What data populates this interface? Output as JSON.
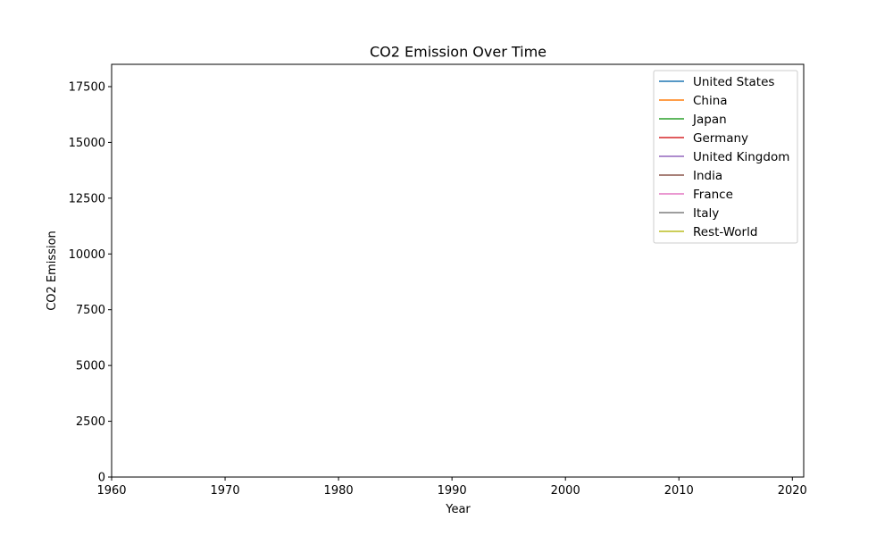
{
  "chart_data": {
    "type": "line",
    "title": "CO2 Emission Over Time",
    "xlabel": "Year",
    "ylabel": "CO2 Emission",
    "xlim": [
      1960,
      2021
    ],
    "ylim": [
      0,
      18500
    ],
    "x_ticks": [
      1960,
      1970,
      1980,
      1990,
      2000,
      2010,
      2020
    ],
    "y_ticks": [
      0,
      2500,
      5000,
      7500,
      10000,
      12500,
      15000,
      17500
    ],
    "grid": false,
    "legend_position": "top-right",
    "series": [
      {
        "name": "United States",
        "color": "#1f77b4",
        "values": []
      },
      {
        "name": "China",
        "color": "#ff7f0e",
        "values": []
      },
      {
        "name": "Japan",
        "color": "#2ca02c",
        "values": []
      },
      {
        "name": "Germany",
        "color": "#d62728",
        "values": []
      },
      {
        "name": "United Kingdom",
        "color": "#9467bd",
        "values": []
      },
      {
        "name": "India",
        "color": "#8c564b",
        "values": []
      },
      {
        "name": "France",
        "color": "#e377c2",
        "values": []
      },
      {
        "name": "Italy",
        "color": "#7f7f7f",
        "values": []
      },
      {
        "name": "Rest-World",
        "color": "#bcbd22",
        "values": []
      }
    ]
  }
}
